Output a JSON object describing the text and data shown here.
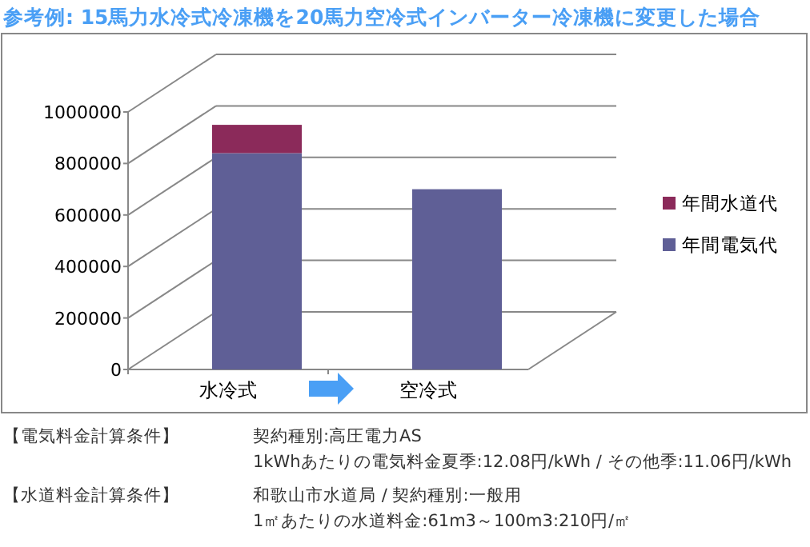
{
  "chart_data": {
    "type": "bar",
    "stacked": true,
    "title": "参考例: 15馬力水冷式冷凍機を20馬力空冷式インバーター冷凍機に変更した場合",
    "categories": [
      "水冷式",
      "空冷式"
    ],
    "series": [
      {
        "name": "年間電気代",
        "color": "#5f5f96",
        "values": [
          840000,
          700000
        ]
      },
      {
        "name": "年間水道代",
        "color": "#8b2a5a",
        "values": [
          110000,
          0
        ]
      }
    ],
    "ylim": [
      0,
      1000000
    ],
    "yticks": [
      0,
      200000,
      400000,
      600000,
      800000,
      1000000
    ],
    "grid": "y",
    "legend": "right",
    "annotations": [
      "【電気料金計算条件】",
      "契約種別:高圧電力AS",
      "1kWhあたりの電気料金夏季:12.08円/kWh  /  その他季:11.06円/kWh",
      "【水道料金計算条件】",
      "和歌山市水道局  /  契約種別:一般用",
      "1㎡あたりの水道料金:61m3～100m3:210円/㎡"
    ]
  }
}
